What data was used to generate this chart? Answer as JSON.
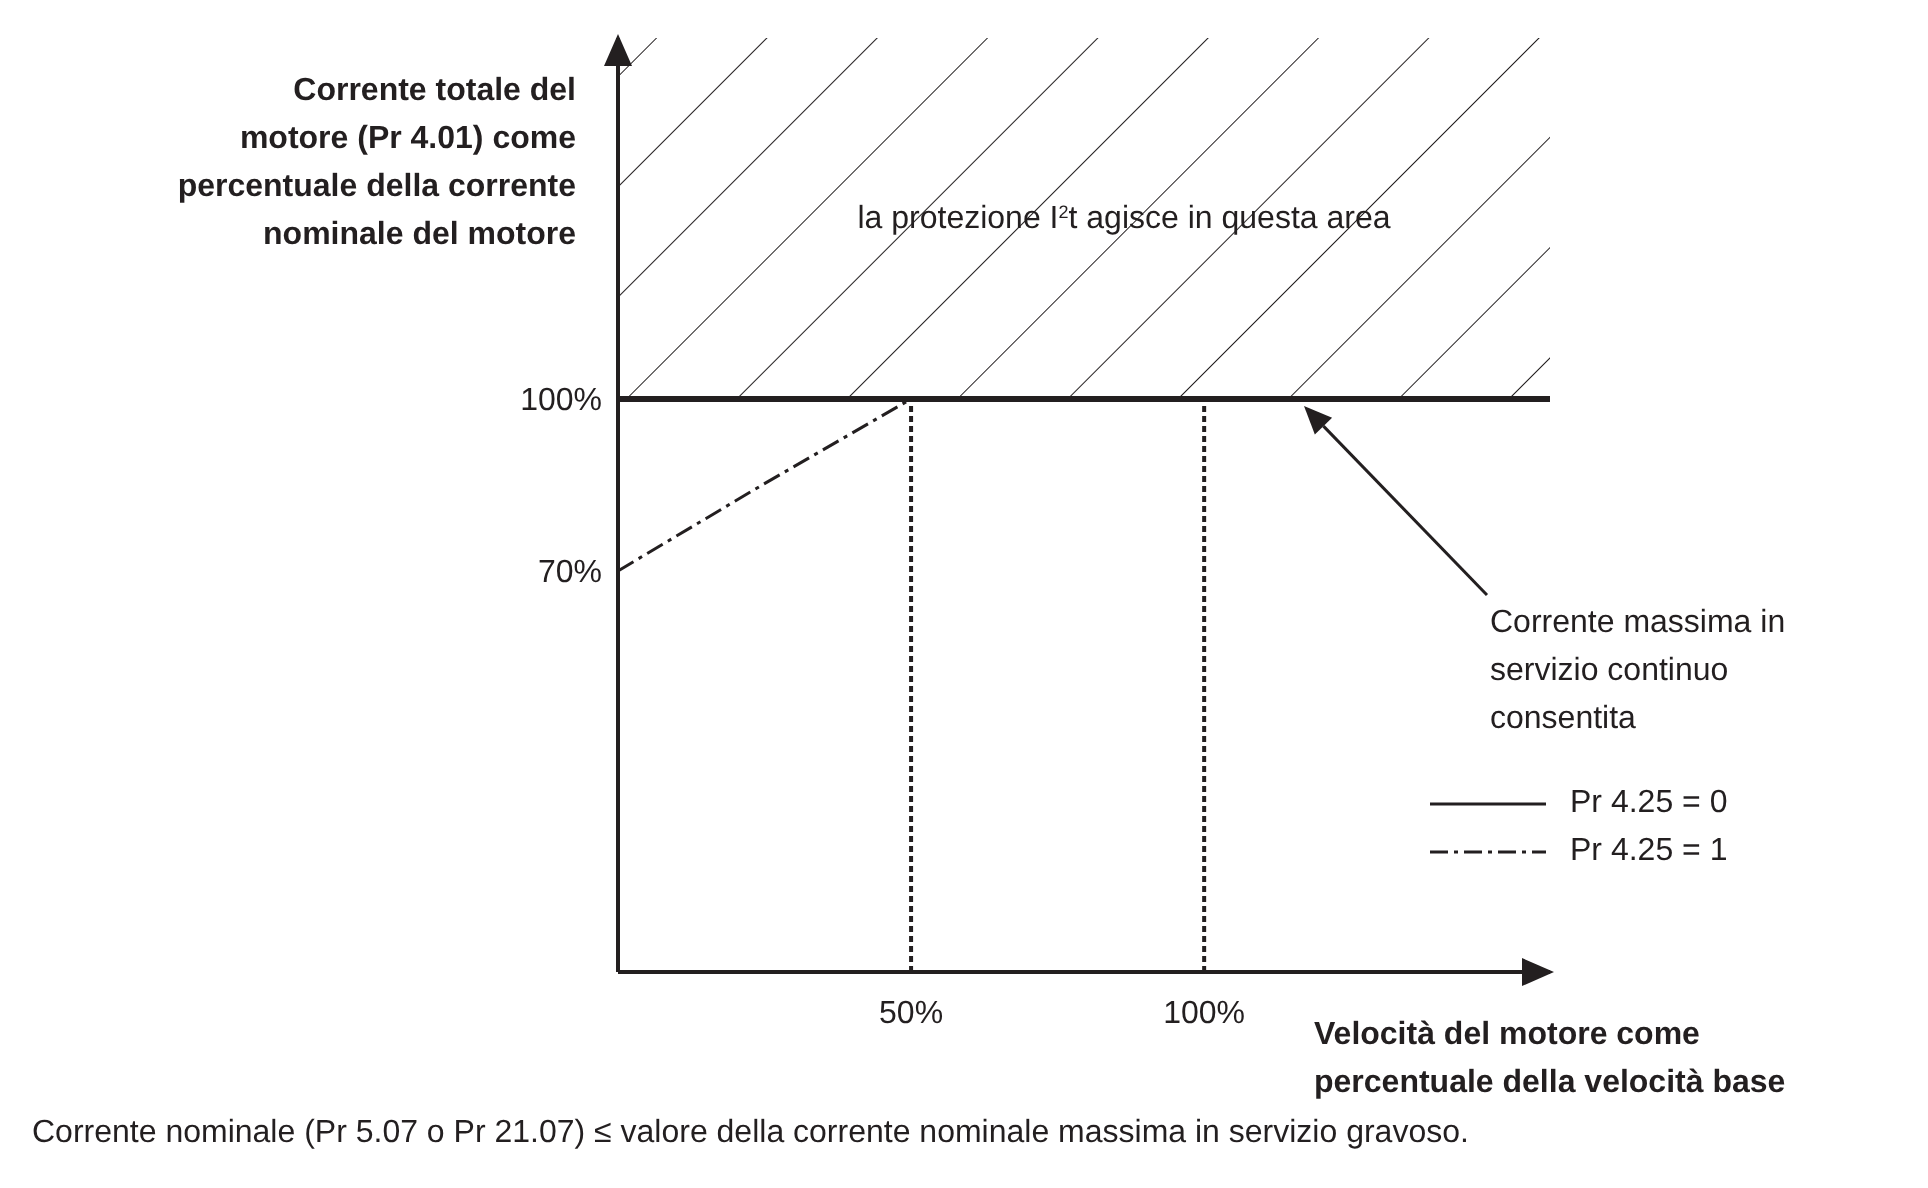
{
  "chart_data": {
    "type": "line",
    "xlabel": "Velocità del motore come percentuale della velocità base",
    "ylabel": "Corrente totale del motore (Pr 4.01) come percentuale della corrente nominale del motore",
    "xlim": [
      0,
      159
    ],
    "ylim": [
      0,
      163
    ],
    "xticks": [
      {
        "value": 50,
        "label": "50%"
      },
      {
        "value": 100,
        "label": "100%"
      }
    ],
    "yticks": [
      {
        "value": 70,
        "label": "70%"
      },
      {
        "value": 100,
        "label": "100%"
      }
    ],
    "grid": false,
    "legend": "bottom right",
    "series": [
      {
        "name": "Pr 4.25 = 0",
        "color": "#231f20",
        "x": [
          0,
          159
        ],
        "values": [
          100,
          100
        ],
        "line_style": "solid"
      },
      {
        "name": "Pr 4.25 = 1",
        "color": "#231f20",
        "x": [
          0,
          24.6,
          50
        ],
        "values": [
          70,
          85,
          100
        ],
        "line_style": "dashed"
      }
    ],
    "ref_lines": [
      {
        "axis": "x",
        "value": 50,
        "color": "#231f20",
        "line_style": "dotted"
      },
      {
        "axis": "x",
        "value": 100,
        "color": "#231f20",
        "line_style": "dotted"
      }
    ],
    "bands": [
      {
        "axis": "y",
        "from": 100,
        "to": 163,
        "label": "la protezione I$^{2}$t agisce in questa area"
      }
    ],
    "annotations": [
      "Corrente massima in servizio continuo consentita",
      "Corrente nominale (Pr 5.07 o Pr 21.07) ≤ valore della corrente nominale massima in servizio gravoso."
    ]
  }
}
